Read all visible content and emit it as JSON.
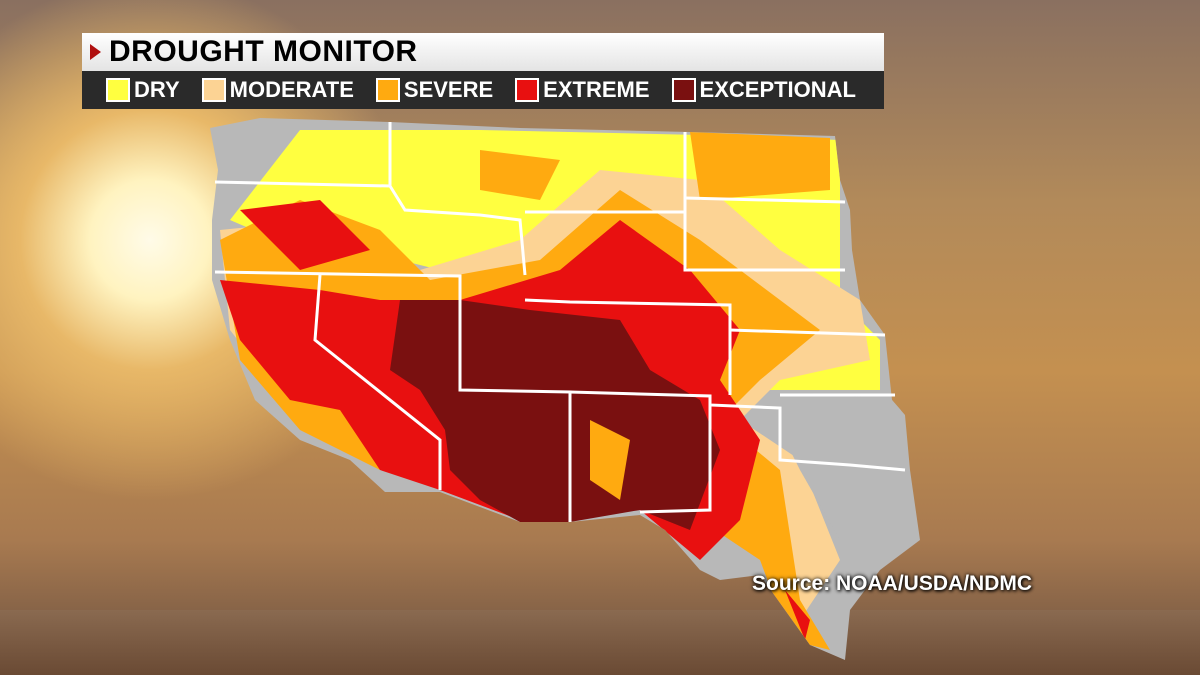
{
  "header": {
    "title": "DROUGHT MONITOR",
    "icon": "play-triangle-icon"
  },
  "legend": [
    {
      "label": "DRY",
      "color": "#ffff40"
    },
    {
      "label": "MODERATE",
      "color": "#fcd394"
    },
    {
      "label": "SEVERE",
      "color": "#ffaa10"
    },
    {
      "label": "EXTREME",
      "color": "#e81010"
    },
    {
      "label": "EXCEPTIONAL",
      "color": "#7a1010"
    }
  ],
  "map": {
    "no_drought_color": "#b8b8b8",
    "border_color": "#ffffff"
  },
  "source": "Source: NOAA/USDA/NDMC"
}
